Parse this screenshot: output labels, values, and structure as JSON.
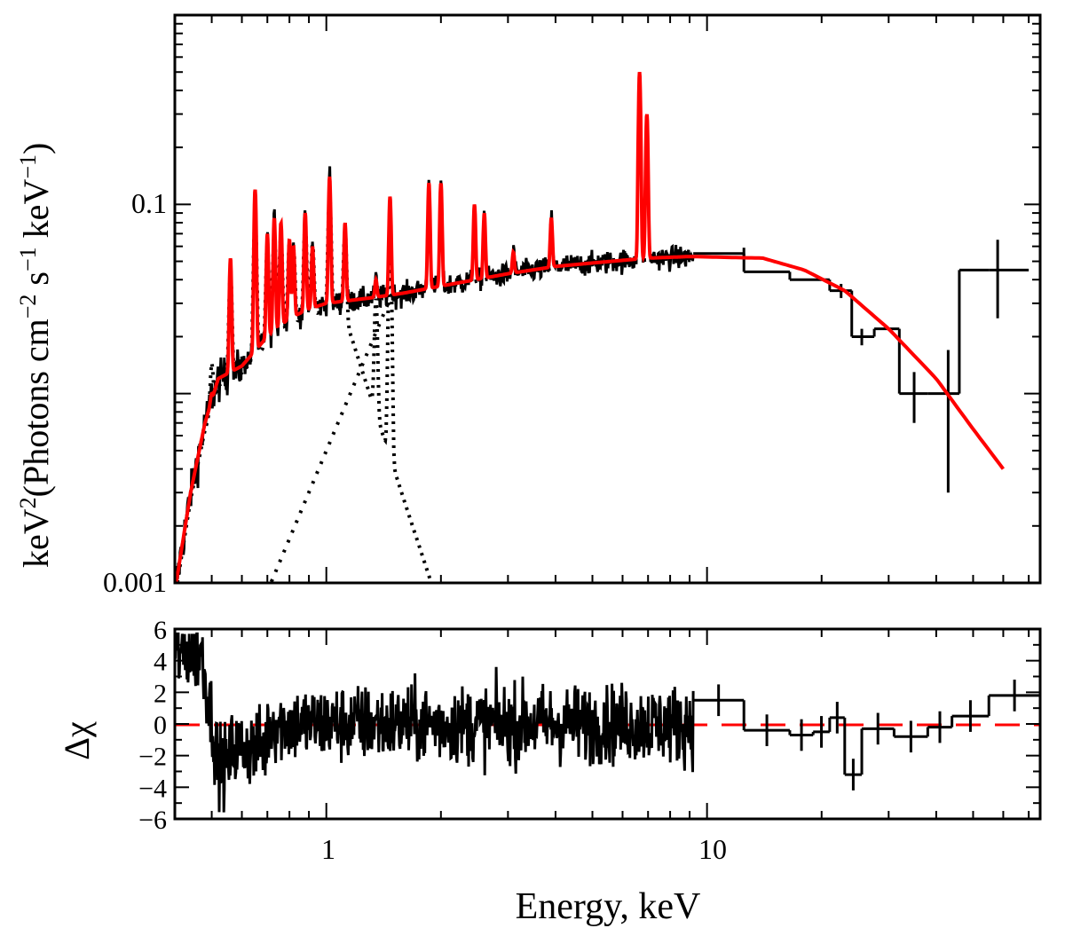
{
  "chart_data": {
    "type": "line",
    "colors": {
      "data": "#000000",
      "model": "#ff0000",
      "component": "#000000",
      "zero_line": "#ff0000"
    },
    "x_axis": {
      "label": "Energy, keV",
      "scale": "log",
      "range": [
        0.4,
        75
      ],
      "tick_labels": [
        {
          "value": 1,
          "text": "1"
        },
        {
          "value": 10,
          "text": "10"
        }
      ]
    },
    "panels": [
      {
        "id": "spectrum",
        "ylabel_text": "keV",
        "ylabel_parts": [
          "keV",
          "2",
          "(Photons cm",
          "−2",
          " s",
          "−1",
          " keV",
          "−1",
          ")"
        ],
        "y_scale": "log",
        "y_range": [
          0.001,
          1.0
        ],
        "y_tick_labels": [
          {
            "value": 0.1,
            "text": "0.1"
          },
          {
            "value": 0.001,
            "text": "0.001"
          }
        ],
        "continuum_model": [
          [
            0.4,
            0.0009
          ],
          [
            0.44,
            0.003
          ],
          [
            0.48,
            0.007
          ],
          [
            0.52,
            0.012
          ],
          [
            0.6,
            0.014
          ],
          [
            0.7,
            0.02
          ],
          [
            0.8,
            0.025
          ],
          [
            0.9,
            0.028
          ],
          [
            1.0,
            0.03
          ],
          [
            1.3,
            0.032
          ],
          [
            1.6,
            0.034
          ],
          [
            2.0,
            0.037
          ],
          [
            3.0,
            0.043
          ],
          [
            4.0,
            0.047
          ],
          [
            5.0,
            0.049
          ],
          [
            7.0,
            0.052
          ],
          [
            9.0,
            0.053
          ],
          [
            14.0,
            0.052
          ],
          [
            18.0,
            0.045
          ],
          [
            23.0,
            0.035
          ],
          [
            30.0,
            0.022
          ],
          [
            40.0,
            0.012
          ],
          [
            50.0,
            0.0065
          ],
          [
            60.0,
            0.004
          ]
        ],
        "emission_lines": [
          [
            0.5,
            0.01
          ],
          [
            0.56,
            0.052
          ],
          [
            0.65,
            0.12
          ],
          [
            0.7,
            0.07
          ],
          [
            0.73,
            0.085
          ],
          [
            0.76,
            0.08
          ],
          [
            0.8,
            0.065
          ],
          [
            0.82,
            0.06
          ],
          [
            0.88,
            0.09
          ],
          [
            0.92,
            0.06
          ],
          [
            1.02,
            0.14
          ],
          [
            1.12,
            0.08
          ],
          [
            1.35,
            0.04
          ],
          [
            1.47,
            0.11
          ],
          [
            1.86,
            0.13
          ],
          [
            2.0,
            0.13
          ],
          [
            2.45,
            0.1
          ],
          [
            2.6,
            0.09
          ],
          [
            3.1,
            0.056
          ],
          [
            3.9,
            0.085
          ],
          [
            6.65,
            0.5
          ],
          [
            6.95,
            0.3
          ]
        ],
        "data_bins": [
          [
            9.2,
            12.5,
            0.055
          ],
          [
            12.5,
            16.5,
            0.044
          ],
          [
            16.5,
            21.0,
            0.04
          ],
          [
            21.0,
            24.0,
            0.035
          ],
          [
            24.0,
            27.5,
            0.02
          ],
          [
            27.5,
            32.0,
            0.022
          ],
          [
            32.0,
            38.0,
            0.01
          ],
          [
            38.0,
            46.0,
            0.01
          ],
          [
            46.0,
            55.0,
            0.045
          ],
          [
            55.0,
            70.0,
            0.045
          ]
        ],
        "data_bins_error": [
          [
            12.5,
            0.004
          ],
          [
            22.5,
            0.003
          ],
          [
            25.5,
            0.002
          ],
          [
            35.0,
            0.003
          ],
          [
            43.0,
            0.007
          ],
          [
            58.0,
            0.02
          ]
        ],
        "component_soft": "soft thermal component (dotted)",
        "component_mid": "second thermal component (dotted)"
      },
      {
        "id": "residuals",
        "ylabel": "Δχ",
        "y_range": [
          -6,
          6
        ],
        "y_tick_labels": [
          {
            "value": 6,
            "text": "6"
          },
          {
            "value": 4,
            "text": "4"
          },
          {
            "value": 2,
            "text": "2"
          },
          {
            "value": 0,
            "text": "0"
          },
          {
            "value": -2,
            "text": "−2"
          },
          {
            "value": -4,
            "text": "−4"
          },
          {
            "value": -6,
            "text": "−6"
          }
        ],
        "residual_bins": [
          [
            9.2,
            12.5,
            1.5
          ],
          [
            12.5,
            16.5,
            -0.4
          ],
          [
            16.5,
            19.0,
            -0.7
          ],
          [
            19.0,
            21.0,
            -0.5
          ],
          [
            21.0,
            23.0,
            0.4
          ],
          [
            23.0,
            25.5,
            -3.2
          ],
          [
            25.5,
            31.0,
            -0.3
          ],
          [
            31.0,
            38.0,
            -0.8
          ],
          [
            38.0,
            44.0,
            -0.2
          ],
          [
            44.0,
            55.0,
            0.5
          ],
          [
            55.0,
            75.0,
            1.8
          ]
        ]
      }
    ]
  }
}
